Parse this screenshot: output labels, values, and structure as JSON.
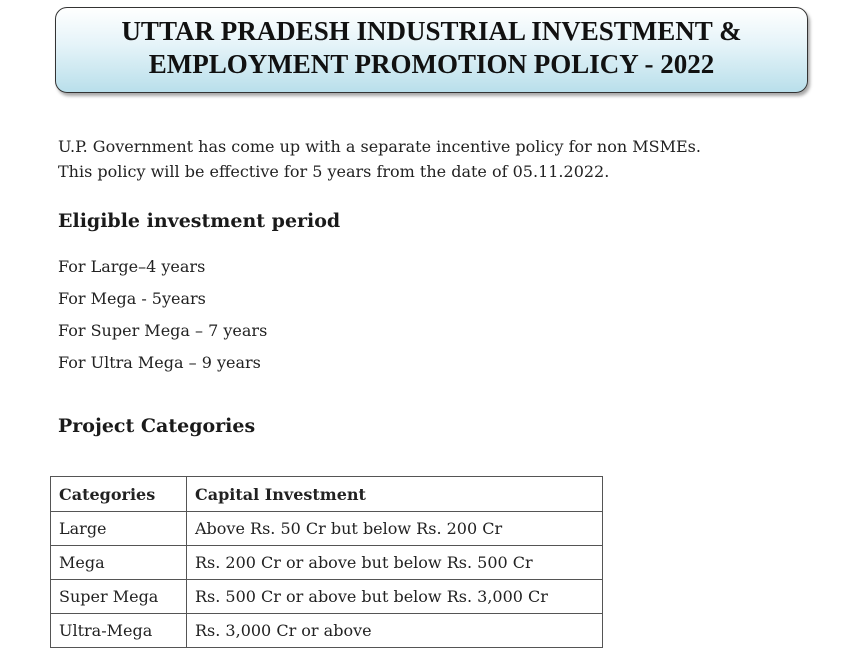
{
  "header": {
    "title_lines": [
      "UTTAR PRADESH INDUSTRIAL INVESTMENT &",
      "EMPLOYMENT PROMOTION POLICY - 2022"
    ]
  },
  "intro": [
    "U.P. Government has come up with a separate incentive policy for non MSMEs.",
    "This policy will be effective for 5 years from the date of 05.11.2022."
  ],
  "eligible": {
    "heading": "Eligible investment period",
    "items": [
      "For Large–4 years",
      "For Mega - 5years",
      "For Super Mega – 7 years",
      "For Ultra Mega – 9 years"
    ]
  },
  "categories": {
    "heading": "Project Categories",
    "table": {
      "header": [
        "Categories",
        "Capital Investment"
      ],
      "rows": [
        [
          "Large",
          "Above Rs. 50 Cr but below Rs. 200 Cr"
        ],
        [
          "Mega",
          "Rs. 200 Cr or above but below Rs. 500 Cr"
        ],
        [
          "Super Mega",
          "Rs. 500 Cr or above but below Rs. 3,000 Cr"
        ],
        [
          "Ultra-Mega",
          "Rs. 3,000 Cr or above"
        ]
      ]
    }
  }
}
